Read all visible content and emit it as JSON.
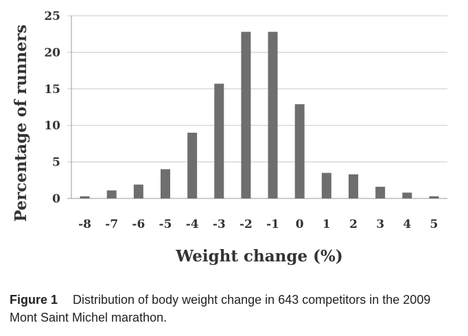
{
  "chart_data": {
    "type": "bar",
    "categories": [
      "-8",
      "-7",
      "-6",
      "-5",
      "-4",
      "-3",
      "-2",
      "-1",
      "0",
      "1",
      "2",
      "3",
      "4",
      "5"
    ],
    "values": [
      0.3,
      1.1,
      1.9,
      4.0,
      9.0,
      15.7,
      22.8,
      22.8,
      12.9,
      3.5,
      3.3,
      1.6,
      0.8,
      0.3
    ],
    "title": "",
    "xlabel": "Weight change (%)",
    "ylabel": "Percentage of runners",
    "ylim": [
      0,
      25
    ],
    "yticks": [
      0,
      5,
      10,
      15,
      20,
      25
    ],
    "grid": true,
    "bar_color": "#6e6e6e",
    "grid_color": "#c8c8c8"
  },
  "caption": {
    "label": "Figure 1",
    "text": "Distribution of body weight change in 643 competitors in the 2009 Mont Saint Michel marathon."
  }
}
